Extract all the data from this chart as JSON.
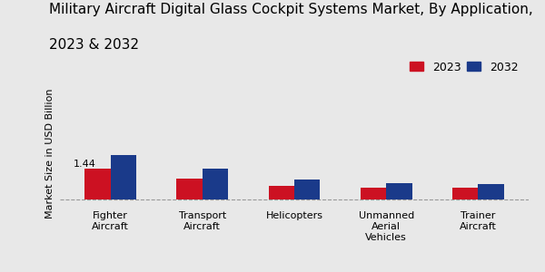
{
  "title_line1": "Military Aircraft Digital Glass Cockpit Systems Market, By Application,",
  "title_line2": "2023 & 2032",
  "ylabel": "Market Size in USD Billion",
  "categories": [
    "Fighter\nAircraft",
    "Transport\nAircraft",
    "Helicopters",
    "Unmanned\nAerial\nVehicles",
    "Trainer\nAircraft"
  ],
  "values_2023": [
    1.44,
    1.0,
    0.65,
    0.58,
    0.55
  ],
  "values_2032": [
    2.1,
    1.45,
    0.95,
    0.78,
    0.72
  ],
  "color_2023": "#cc1122",
  "color_2032": "#1a3a8a",
  "annotation_value": "1.44",
  "annotation_index": 0,
  "background_color": "#e8e8e8",
  "bar_width": 0.28,
  "legend_2023": "2023",
  "legend_2032": "2032",
  "title_fontsize": 11,
  "label_fontsize": 8,
  "tick_fontsize": 8,
  "legend_fontsize": 9,
  "ylim_max": 4.5
}
